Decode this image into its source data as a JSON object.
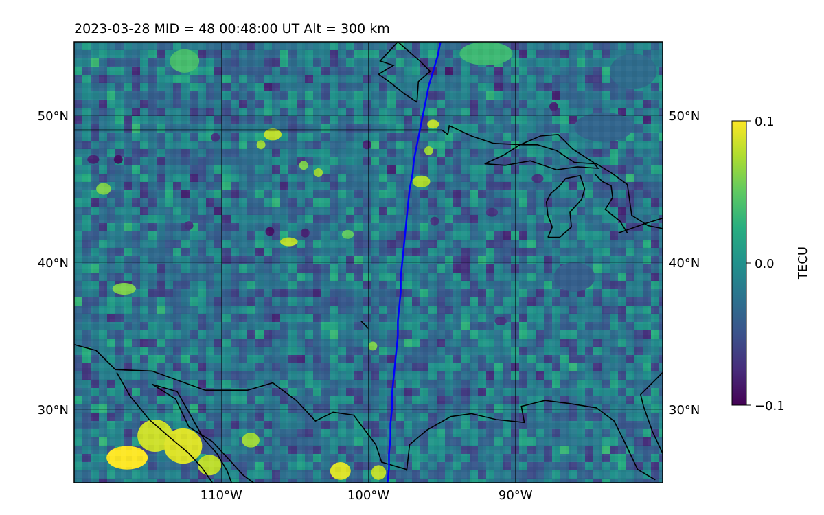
{
  "chart_data": {
    "type": "heatmap",
    "title": "2023-03-28  MID =  48    00:48:00  UT  Alt = 300 km",
    "projection": "PlateCarree",
    "extent": {
      "lon": [
        -120,
        -80
      ],
      "lat": [
        25,
        55
      ]
    },
    "grid": true,
    "x_ticks": [
      {
        "value": -110,
        "label": "110°W"
      },
      {
        "value": -100,
        "label": "100°W"
      },
      {
        "value": -90,
        "label": "90°W"
      }
    ],
    "y_ticks": [
      {
        "value": 30,
        "label": "30°N"
      },
      {
        "value": 40,
        "label": "40°N"
      },
      {
        "value": 50,
        "label": "50°N"
      }
    ],
    "colorbar": {
      "label": "TECU",
      "colormap": "viridis",
      "range": [
        -0.1,
        0.1
      ],
      "ticks": [
        {
          "value": 0.1,
          "label": "0.1"
        },
        {
          "value": 0.0,
          "label": "0.0"
        },
        {
          "value": -0.1,
          "label": "−0.1"
        }
      ]
    },
    "track": {
      "color": "#0000ff",
      "points": [
        [
          -95.1,
          55.0
        ],
        [
          -95.3,
          54.0
        ],
        [
          -95.6,
          53.0
        ],
        [
          -95.9,
          52.0
        ],
        [
          -96.1,
          51.0
        ],
        [
          -96.3,
          50.0
        ],
        [
          -96.5,
          49.0
        ],
        [
          -96.7,
          48.0
        ],
        [
          -96.9,
          47.0
        ],
        [
          -97.0,
          46.0
        ],
        [
          -97.2,
          45.0
        ],
        [
          -97.3,
          44.0
        ],
        [
          -97.4,
          43.0
        ],
        [
          -97.5,
          42.0
        ],
        [
          -97.6,
          41.0
        ],
        [
          -97.7,
          40.0
        ],
        [
          -97.8,
          39.0
        ],
        [
          -97.8,
          38.0
        ],
        [
          -97.9,
          37.0
        ],
        [
          -98.0,
          36.0
        ],
        [
          -98.0,
          35.0
        ],
        [
          -98.1,
          34.0
        ],
        [
          -98.2,
          33.0
        ],
        [
          -98.3,
          32.0
        ],
        [
          -98.4,
          31.0
        ],
        [
          -98.4,
          30.0
        ],
        [
          -98.5,
          29.0
        ],
        [
          -98.5,
          28.0
        ],
        [
          -98.6,
          27.0
        ],
        [
          -98.6,
          26.0
        ],
        [
          -98.7,
          25.0
        ]
      ]
    },
    "coastlines": [
      [
        [
          -120.0,
          49.0
        ],
        [
          -95.0,
          49.0
        ],
        [
          -94.6,
          48.7
        ],
        [
          -94.5,
          49.3
        ],
        [
          -93.0,
          48.6
        ],
        [
          -91.5,
          48.1
        ],
        [
          -89.5,
          48.0
        ],
        [
          -88.5,
          48.0
        ],
        [
          -87.2,
          47.6
        ],
        [
          -86.0,
          46.8
        ],
        [
          -84.5,
          46.7
        ],
        [
          -83.5,
          46.1
        ],
        [
          -82.4,
          45.3
        ],
        [
          -82.1,
          43.2
        ],
        [
          -81.0,
          42.5
        ],
        [
          -80.0,
          42.3
        ]
      ],
      [
        [
          -89.7,
          48.0
        ],
        [
          -88.3,
          48.6
        ],
        [
          -87.1,
          48.7
        ],
        [
          -86.1,
          47.7
        ],
        [
          -84.7,
          46.8
        ],
        [
          -84.4,
          46.4
        ],
        [
          -85.8,
          46.5
        ],
        [
          -87.2,
          46.3
        ],
        [
          -89.0,
          46.9
        ],
        [
          -90.7,
          46.6
        ],
        [
          -92.1,
          46.7
        ],
        [
          -90.8,
          47.3
        ],
        [
          -89.7,
          48.0
        ]
      ],
      [
        [
          -87.8,
          41.7
        ],
        [
          -87.5,
          42.4
        ],
        [
          -87.8,
          43.2
        ],
        [
          -87.9,
          44.1
        ],
        [
          -87.6,
          44.7
        ],
        [
          -87.0,
          45.2
        ],
        [
          -86.6,
          45.7
        ],
        [
          -85.6,
          45.9
        ],
        [
          -85.3,
          45.0
        ],
        [
          -85.5,
          44.3
        ],
        [
          -86.3,
          43.4
        ],
        [
          -86.2,
          42.4
        ],
        [
          -87.0,
          41.7
        ],
        [
          -87.8,
          41.7
        ]
      ],
      [
        [
          -84.6,
          46.0
        ],
        [
          -84.1,
          45.5
        ],
        [
          -83.5,
          45.2
        ],
        [
          -83.4,
          44.4
        ],
        [
          -83.9,
          43.6
        ],
        [
          -82.9,
          42.8
        ],
        [
          -82.4,
          42.0
        ]
      ],
      [
        [
          -83.0,
          42.0
        ],
        [
          -81.3,
          42.6
        ],
        [
          -80.0,
          43.0
        ]
      ],
      [
        [
          -98.0,
          55.0
        ],
        [
          -99.2,
          53.7
        ],
        [
          -98.3,
          53.4
        ],
        [
          -99.3,
          52.8
        ],
        [
          -98.6,
          52.3
        ],
        [
          -97.6,
          51.5
        ],
        [
          -96.7,
          50.9
        ],
        [
          -96.6,
          52.3
        ],
        [
          -95.8,
          53.0
        ],
        [
          -96.5,
          53.7
        ],
        [
          -98.0,
          55.0
        ]
      ],
      [
        [
          -120.0,
          34.4
        ],
        [
          -118.5,
          34.0
        ],
        [
          -117.2,
          32.7
        ],
        [
          -114.7,
          32.6
        ],
        [
          -111.1,
          31.3
        ],
        [
          -108.2,
          31.3
        ],
        [
          -106.5,
          31.8
        ],
        [
          -104.9,
          30.6
        ],
        [
          -103.6,
          29.2
        ],
        [
          -102.4,
          29.8
        ],
        [
          -101.0,
          29.6
        ],
        [
          -99.5,
          27.6
        ],
        [
          -99.1,
          26.4
        ],
        [
          -97.4,
          25.9
        ]
      ],
      [
        [
          -97.4,
          25.8
        ],
        [
          -97.2,
          27.6
        ],
        [
          -96.0,
          28.6
        ],
        [
          -94.4,
          29.5
        ],
        [
          -93.0,
          29.7
        ],
        [
          -91.3,
          29.3
        ],
        [
          -89.4,
          29.1
        ],
        [
          -89.6,
          30.2
        ],
        [
          -88.0,
          30.6
        ],
        [
          -86.4,
          30.4
        ],
        [
          -84.5,
          30.1
        ],
        [
          -83.3,
          29.2
        ],
        [
          -82.6,
          27.8
        ],
        [
          -81.7,
          25.9
        ],
        [
          -80.5,
          25.2
        ]
      ],
      [
        [
          -80.0,
          27.0
        ],
        [
          -80.7,
          28.5
        ],
        [
          -81.3,
          30.2
        ],
        [
          -81.5,
          31.0
        ],
        [
          -80.0,
          32.5
        ]
      ],
      [
        [
          -117.1,
          32.5
        ],
        [
          -116.2,
          30.9
        ],
        [
          -114.9,
          29.3
        ],
        [
          -113.4,
          28.0
        ],
        [
          -112.2,
          27.0
        ],
        [
          -111.3,
          26.0
        ],
        [
          -110.6,
          25.0
        ]
      ],
      [
        [
          -114.7,
          31.7
        ],
        [
          -113.0,
          31.2
        ],
        [
          -112.2,
          29.8
        ],
        [
          -111.2,
          28.0
        ],
        [
          -110.3,
          27.0
        ],
        [
          -109.6,
          25.8
        ],
        [
          -109.3,
          25.0
        ]
      ],
      [
        [
          -107.8,
          25.0
        ],
        [
          -108.5,
          25.5
        ],
        [
          -109.4,
          26.5
        ],
        [
          -110.6,
          27.8
        ],
        [
          -112.2,
          28.8
        ],
        [
          -113.1,
          30.7
        ],
        [
          -114.7,
          31.7
        ]
      ],
      [
        [
          -100.0,
          35.5
        ],
        [
          -100.5,
          36.0
        ]
      ]
    ],
    "anomaly_patches": [
      {
        "lon": -116.4,
        "lat": 26.7,
        "rx": 1.4,
        "ry": 0.8,
        "value": 0.1
      },
      {
        "lon": -114.5,
        "lat": 28.2,
        "rx": 1.2,
        "ry": 1.1,
        "value": 0.085
      },
      {
        "lon": -112.6,
        "lat": 27.5,
        "rx": 1.3,
        "ry": 1.2,
        "value": 0.09
      },
      {
        "lon": -110.8,
        "lat": 26.2,
        "rx": 0.8,
        "ry": 0.7,
        "value": 0.08
      },
      {
        "lon": -108.0,
        "lat": 27.9,
        "rx": 0.6,
        "ry": 0.5,
        "value": 0.07
      },
      {
        "lon": -101.9,
        "lat": 25.8,
        "rx": 0.7,
        "ry": 0.6,
        "value": 0.09
      },
      {
        "lon": -99.3,
        "lat": 25.7,
        "rx": 0.5,
        "ry": 0.5,
        "value": 0.08
      },
      {
        "lon": -95.6,
        "lat": 49.4,
        "rx": 0.4,
        "ry": 0.3,
        "value": 0.08
      },
      {
        "lon": -96.4,
        "lat": 45.5,
        "rx": 0.6,
        "ry": 0.4,
        "value": 0.075
      },
      {
        "lon": -95.9,
        "lat": 47.6,
        "rx": 0.3,
        "ry": 0.3,
        "value": 0.07
      },
      {
        "lon": -106.5,
        "lat": 48.7,
        "rx": 0.6,
        "ry": 0.4,
        "value": 0.08
      },
      {
        "lon": -105.4,
        "lat": 41.4,
        "rx": 0.6,
        "ry": 0.3,
        "value": 0.08
      },
      {
        "lon": -103.4,
        "lat": 46.1,
        "rx": 0.3,
        "ry": 0.3,
        "value": 0.07
      },
      {
        "lon": -118.0,
        "lat": 45.0,
        "rx": 0.5,
        "ry": 0.4,
        "value": 0.06
      },
      {
        "lon": -116.6,
        "lat": 38.2,
        "rx": 0.8,
        "ry": 0.4,
        "value": 0.06
      },
      {
        "lon": -107.3,
        "lat": 48.0,
        "rx": 0.3,
        "ry": 0.3,
        "value": 0.07
      },
      {
        "lon": -99.7,
        "lat": 34.3,
        "rx": 0.3,
        "ry": 0.3,
        "value": 0.06
      },
      {
        "lon": -101.4,
        "lat": 41.9,
        "rx": 0.4,
        "ry": 0.3,
        "value": 0.05
      },
      {
        "lon": -104.4,
        "lat": 46.6,
        "rx": 0.3,
        "ry": 0.3,
        "value": 0.06
      },
      {
        "lon": -112.5,
        "lat": 53.7,
        "rx": 1.0,
        "ry": 0.8,
        "value": 0.04
      },
      {
        "lon": -92.0,
        "lat": 54.2,
        "rx": 1.8,
        "ry": 0.8,
        "value": 0.035
      },
      {
        "lon": -86.0,
        "lat": 39.0,
        "rx": 1.4,
        "ry": 1.0,
        "value": -0.04
      },
      {
        "lon": -84.0,
        "lat": 49.2,
        "rx": 2.0,
        "ry": 1.0,
        "value": -0.035
      },
      {
        "lon": -82.0,
        "lat": 53.0,
        "rx": 1.6,
        "ry": 1.2,
        "value": -0.03
      },
      {
        "lon": -118.7,
        "lat": 47.0,
        "rx": 0.4,
        "ry": 0.3,
        "value": -0.08
      },
      {
        "lon": -117.0,
        "lat": 47.0,
        "rx": 0.3,
        "ry": 0.3,
        "value": -0.09
      },
      {
        "lon": -106.7,
        "lat": 42.1,
        "rx": 0.3,
        "ry": 0.3,
        "value": -0.09
      },
      {
        "lon": -104.3,
        "lat": 42.0,
        "rx": 0.3,
        "ry": 0.3,
        "value": -0.08
      },
      {
        "lon": -100.1,
        "lat": 48.0,
        "rx": 0.3,
        "ry": 0.3,
        "value": -0.08
      },
      {
        "lon": -95.5,
        "lat": 42.8,
        "rx": 0.3,
        "ry": 0.3,
        "value": -0.07
      },
      {
        "lon": -91.6,
        "lat": 43.4,
        "rx": 0.4,
        "ry": 0.3,
        "value": -0.07
      },
      {
        "lon": -88.5,
        "lat": 45.7,
        "rx": 0.4,
        "ry": 0.3,
        "value": -0.07
      },
      {
        "lon": -91.0,
        "lat": 36.0,
        "rx": 0.4,
        "ry": 0.3,
        "value": -0.07
      },
      {
        "lon": -87.4,
        "lat": 50.6,
        "rx": 0.3,
        "ry": 0.3,
        "value": -0.08
      },
      {
        "lon": -112.2,
        "lat": 42.5,
        "rx": 0.3,
        "ry": 0.3,
        "value": -0.07
      },
      {
        "lon": -110.4,
        "lat": 48.5,
        "rx": 0.3,
        "ry": 0.3,
        "value": -0.07
      }
    ]
  }
}
